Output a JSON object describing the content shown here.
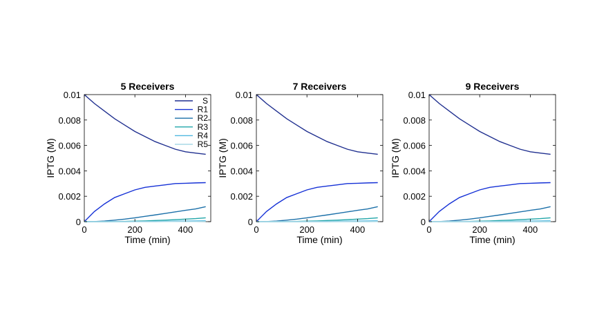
{
  "colors": {
    "S": "#1f2f8f",
    "R1": "#1430d6",
    "R2": "#1a6fa8",
    "R3": "#1fa5a8",
    "R4": "#4fb8e0",
    "R5": "#a8d8e6"
  },
  "chart_data": [
    {
      "type": "line",
      "title": "5 Receivers",
      "xlabel": "Time (min)",
      "ylabel": "IPTG (M)",
      "xlim": [
        0,
        500
      ],
      "ylim": [
        0,
        0.01
      ],
      "xticks": [
        0,
        200,
        400
      ],
      "yticks": [
        0,
        0.002,
        0.004,
        0.006,
        0.008,
        0.01
      ],
      "xtick_labels": [
        "0",
        "200",
        "400"
      ],
      "ytick_labels": [
        "0",
        "0.002",
        "0.004",
        "0.006",
        "0.008",
        "0.01"
      ],
      "grid": false,
      "legend": "top-right",
      "x": [
        0,
        40,
        80,
        120,
        160,
        200,
        240,
        280,
        320,
        360,
        400,
        440,
        480
      ],
      "series": [
        {
          "name": "S",
          "values": [
            0.01,
            0.0093,
            0.0087,
            0.0081,
            0.0076,
            0.0071,
            0.0067,
            0.0063,
            0.006,
            0.0057,
            0.0055,
            0.0054,
            0.0053
          ]
        },
        {
          "name": "R1",
          "values": [
            0,
            0.0008,
            0.0014,
            0.0019,
            0.0022,
            0.0025,
            0.0027,
            0.0028,
            0.0029,
            0.003,
            0.00302,
            0.00305,
            0.00307
          ]
        },
        {
          "name": "R2",
          "values": [
            0,
            1e-05,
            5e-05,
            0.00012,
            0.0002,
            0.0003,
            0.00042,
            0.00053,
            0.00065,
            0.00077,
            0.00089,
            0.001,
            0.00118
          ]
        },
        {
          "name": "R3",
          "values": [
            0,
            0,
            0,
            1e-05,
            2e-05,
            4e-05,
            6e-05,
            9e-05,
            0.00012,
            0.00016,
            0.0002,
            0.00024,
            0.0003
          ]
        },
        {
          "name": "R4",
          "values": [
            0,
            0,
            0,
            0,
            0,
            1e-05,
            1e-05,
            2e-05,
            3e-05,
            4e-05,
            5e-05,
            6e-05,
            7e-05
          ]
        },
        {
          "name": "R5",
          "values": [
            0,
            0,
            0,
            0,
            0,
            0,
            0,
            0,
            1e-05,
            1e-05,
            1e-05,
            1e-05,
            2e-05
          ]
        }
      ]
    },
    {
      "type": "line",
      "title": "7 Receivers",
      "xlabel": "Time (min)",
      "ylabel": "IPTG (M)",
      "xlim": [
        0,
        500
      ],
      "ylim": [
        0,
        0.01
      ],
      "xticks": [
        0,
        200,
        400
      ],
      "yticks": [
        0,
        0.002,
        0.004,
        0.006,
        0.008,
        0.01
      ],
      "xtick_labels": [
        "0",
        "200",
        "400"
      ],
      "ytick_labels": [
        "0",
        "0.002",
        "0.004",
        "0.006",
        "0.008",
        "0.01"
      ],
      "grid": false,
      "x": [
        0,
        40,
        80,
        120,
        160,
        200,
        240,
        280,
        320,
        360,
        400,
        440,
        480
      ],
      "series": [
        {
          "values": [
            0.01,
            0.0093,
            0.0087,
            0.0081,
            0.0076,
            0.0071,
            0.0067,
            0.0063,
            0.006,
            0.0057,
            0.0055,
            0.0054,
            0.0053
          ]
        },
        {
          "values": [
            0,
            0.0008,
            0.0014,
            0.0019,
            0.0022,
            0.0025,
            0.0027,
            0.0028,
            0.0029,
            0.003,
            0.00302,
            0.00305,
            0.00307
          ]
        },
        {
          "values": [
            0,
            1e-05,
            5e-05,
            0.00012,
            0.0002,
            0.0003,
            0.00042,
            0.00053,
            0.00065,
            0.00077,
            0.00089,
            0.001,
            0.00118
          ]
        },
        {
          "values": [
            0,
            0,
            0,
            1e-05,
            2e-05,
            4e-05,
            6e-05,
            9e-05,
            0.00012,
            0.00016,
            0.0002,
            0.00024,
            0.0003
          ]
        },
        {
          "values": [
            0,
            0,
            0,
            0,
            0,
            1e-05,
            1e-05,
            2e-05,
            3e-05,
            4e-05,
            5e-05,
            6e-05,
            7e-05
          ]
        },
        {
          "values": [
            0,
            0,
            0,
            0,
            0,
            0,
            0,
            0,
            1e-05,
            1e-05,
            1e-05,
            1e-05,
            2e-05
          ]
        },
        {
          "values": [
            0,
            0,
            0,
            0,
            0,
            0,
            0,
            0,
            0,
            0,
            0,
            0,
            1e-05
          ]
        }
      ]
    },
    {
      "type": "line",
      "title": "9 Receivers",
      "xlabel": "Time (min)",
      "ylabel": "IPTG (M)",
      "xlim": [
        0,
        500
      ],
      "ylim": [
        0,
        0.01
      ],
      "xticks": [
        0,
        200,
        400
      ],
      "yticks": [
        0,
        0.002,
        0.004,
        0.006,
        0.008,
        0.01
      ],
      "xtick_labels": [
        "0",
        "200",
        "400"
      ],
      "ytick_labels": [
        "0",
        "0.002",
        "0.004",
        "0.006",
        "0.008",
        "0.01"
      ],
      "grid": false,
      "x": [
        0,
        40,
        80,
        120,
        160,
        200,
        240,
        280,
        320,
        360,
        400,
        440,
        480
      ],
      "series": [
        {
          "values": [
            0.01,
            0.0093,
            0.0087,
            0.0081,
            0.0076,
            0.0071,
            0.0067,
            0.0063,
            0.006,
            0.0057,
            0.0055,
            0.0054,
            0.0053
          ]
        },
        {
          "values": [
            0,
            0.0008,
            0.0014,
            0.0019,
            0.0022,
            0.0025,
            0.0027,
            0.0028,
            0.0029,
            0.003,
            0.00302,
            0.00305,
            0.00307
          ]
        },
        {
          "values": [
            0,
            1e-05,
            5e-05,
            0.00012,
            0.0002,
            0.0003,
            0.00042,
            0.00053,
            0.00065,
            0.00077,
            0.00089,
            0.001,
            0.00118
          ]
        },
        {
          "values": [
            0,
            0,
            0,
            1e-05,
            2e-05,
            4e-05,
            6e-05,
            9e-05,
            0.00012,
            0.00016,
            0.0002,
            0.00024,
            0.0003
          ]
        },
        {
          "values": [
            0,
            0,
            0,
            0,
            0,
            1e-05,
            1e-05,
            2e-05,
            3e-05,
            4e-05,
            5e-05,
            6e-05,
            7e-05
          ]
        },
        {
          "values": [
            0,
            0,
            0,
            0,
            0,
            0,
            0,
            0,
            1e-05,
            1e-05,
            1e-05,
            1e-05,
            2e-05
          ]
        },
        {
          "values": [
            0,
            0,
            0,
            0,
            0,
            0,
            0,
            0,
            0,
            0,
            0,
            0,
            1e-05
          ]
        },
        {
          "values": [
            0,
            0,
            0,
            0,
            0,
            0,
            0,
            0,
            0,
            0,
            0,
            0,
            0
          ]
        },
        {
          "values": [
            0,
            0,
            0,
            0,
            0,
            0,
            0,
            0,
            0,
            0,
            0,
            0,
            0
          ]
        }
      ]
    }
  ]
}
